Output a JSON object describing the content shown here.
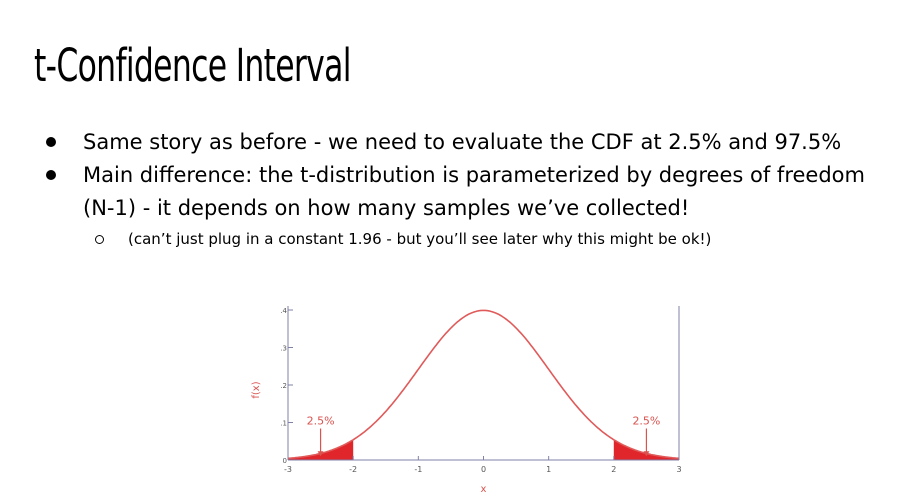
{
  "slide": {
    "title": "t-Confidence Interval",
    "bullets": [
      "Same story as before - we need to evaluate the CDF at 2.5% and 97.5%",
      "Main difference: the t-distribution is parameterized by degrees of freedom (N-1) - it depends on how many samples we’ve collected!"
    ],
    "sub_bullet": "(can’t just plug in a constant 1.96 - but you’ll see later why this might be ok!)"
  },
  "chart_data": {
    "type": "area",
    "xlabel": "x",
    "ylabel": "f(x)",
    "xlim": [
      -3,
      3
    ],
    "ylim": [
      0,
      0.4
    ],
    "x_ticks": [
      "-3",
      "-2",
      "-1",
      "0",
      "1",
      "2",
      "3"
    ],
    "y_ticks": [
      "0",
      ".1",
      ".2",
      ".3",
      ".4"
    ],
    "curve_color": "#e05a5a",
    "tail_color": "#e0262b",
    "label_color": "#d9534f",
    "axis_color": "#8080a8",
    "tails": [
      {
        "label": "2.5%",
        "from": -3,
        "to": -2
      },
      {
        "label": "2.5%",
        "from": 2,
        "to": 3
      }
    ]
  }
}
